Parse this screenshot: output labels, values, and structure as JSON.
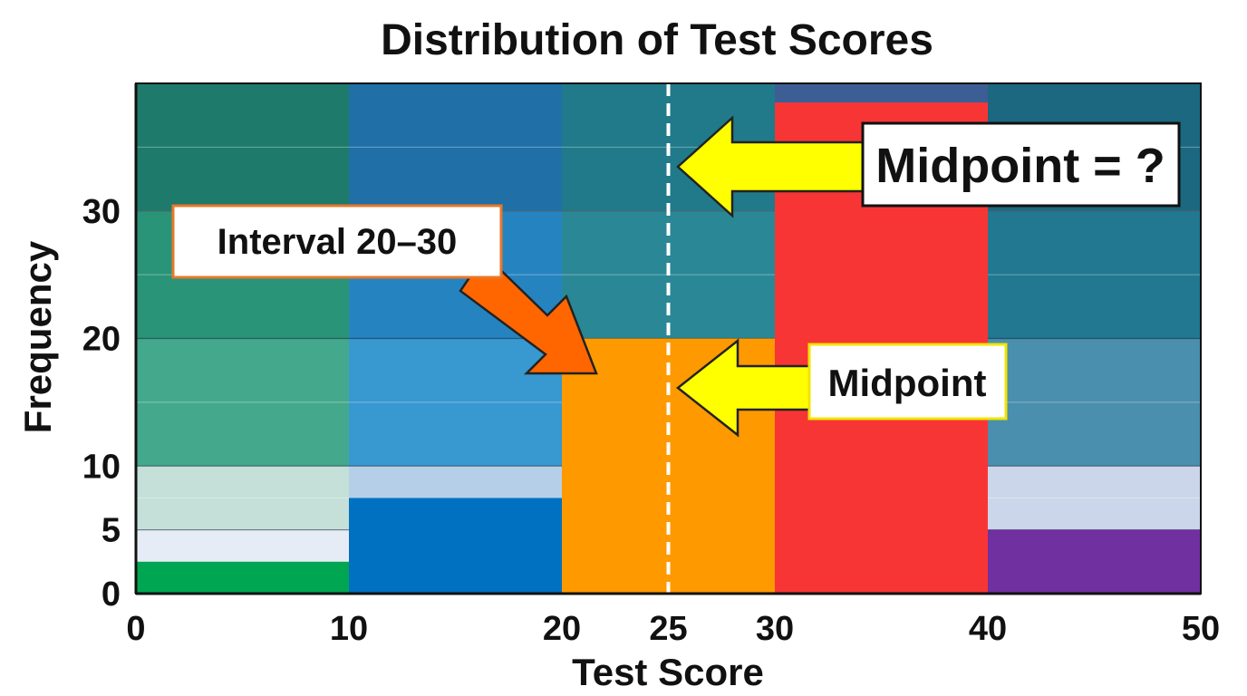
{
  "chart_data": {
    "type": "bar",
    "title": "Distribution of Test Scores",
    "xlabel": "Test Score",
    "ylabel": "Frequency",
    "xlim": [
      0,
      50
    ],
    "ylim": [
      0,
      40
    ],
    "x_ticks": [
      "0",
      "10",
      "20",
      "25",
      "30",
      "40",
      "50"
    ],
    "y_ticks": [
      "0",
      "5",
      "10",
      "20",
      "30"
    ],
    "bins": [
      {
        "start": 0,
        "end": 10,
        "value": 2.5,
        "color": "#00a651"
      },
      {
        "start": 10,
        "end": 20,
        "value": 7.5,
        "color": "#0070c0"
      },
      {
        "start": 20,
        "end": 30,
        "value": 20,
        "color": "#ff9900"
      },
      {
        "start": 30,
        "end": 40,
        "value": 38.5,
        "color": "#f83535"
      },
      {
        "start": 40,
        "end": 50,
        "value": 5,
        "color": "#7030a0"
      }
    ],
    "midpoint_line_x": 25,
    "annotations": [
      {
        "text": "Interval 20–30",
        "arrow_color": "#ff6600"
      },
      {
        "text": "Midpoint = ?",
        "arrow_color": "#ffff00"
      },
      {
        "text": "Midpoint",
        "arrow_color": "#ffff00"
      }
    ],
    "grid": true
  }
}
